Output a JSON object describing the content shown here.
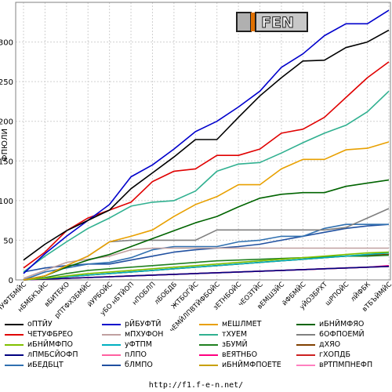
{
  "chart_data": {
    "type": "line",
    "ylabel": "ФПЮЛИ",
    "ylim": [
      0,
      350
    ],
    "yticks": [
      0,
      50,
      100,
      150,
      200,
      250,
      300
    ],
    "grid": true,
    "legend_placement": "bottom",
    "categories": [
      "бЧУФТБМЙС",
      "нБМБКЪЙС",
      "вБИТЕКО",
      "рПТФХЗБМЙС",
      "йУРБОЙС",
      "уБО нБТЙОП",
      "нПОБЛП",
      "лБОБДБ",
      "ЖТБОГЙС",
      "чЕМЙЛПВТЙФБОЙС",
      "зЕТНБОЙС",
      "чЕОЗТЙС",
      "вЕМШЗЙС",
      "йФБМЙС",
      "уЙОЗБРХТ",
      "шРПОЙС",
      "лЙФБК",
      "вТБЪЙМЙС"
    ],
    "x_tick_labels": [
      "бЧУФТБМЙС",
      "нБМБКЪЙС",
      "вБИТЕКО",
      "рПТФХЗБМЙС",
      "йУРБОЙС",
      "уБО нБТЙОП",
      "нПОБЛП",
      "лБОБДБ",
      "ЖТБОГЙС",
      "чЕМЙЛПВТЙФБОЙС",
      "зЕТНБОЙС",
      "чЕОЗТЙС",
      "вЕМШЗЙС",
      "йФБМЙС",
      "уЙОЗБРХТ",
      "шРПОЙС",
      "лЙФБК",
      "вТБЪЙМЙС"
    ],
    "series": [
      {
        "name": "оПТЙУ",
        "color": "#000000",
        "values": [
          25,
          45,
          62,
          75,
          88,
          115,
          135,
          155,
          177,
          177,
          205,
          232,
          255,
          276,
          277,
          293,
          300,
          315
        ]
      },
      {
        "name": "рЙБУФТЙ",
        "color": "#0000cc",
        "values": [
          8,
          33,
          55,
          75,
          95,
          130,
          145,
          165,
          187,
          200,
          218,
          238,
          268,
          285,
          308,
          323,
          323,
          340
        ]
      },
      {
        "name": "мЕШЛМЕТ",
        "color": "#e8a000",
        "values": [
          0,
          5,
          18,
          30,
          48,
          55,
          63,
          80,
          95,
          105,
          120,
          120,
          140,
          152,
          152,
          164,
          166,
          174
        ]
      },
      {
        "name": "иБНЙМФЯО",
        "color": "#006400",
        "values": [
          0,
          5,
          16,
          25,
          32,
          42,
          52,
          62,
          72,
          80,
          92,
          103,
          108,
          110,
          110,
          118,
          122,
          126
        ]
      },
      {
        "name": "ЧЕТУФБРЕО",
        "color": "#e00000",
        "values": [
          15,
          35,
          62,
          78,
          88,
          98,
          124,
          137,
          140,
          157,
          157,
          165,
          185,
          190,
          205,
          230,
          255,
          275
        ]
      },
      {
        "name": "мПХУФОН",
        "color": "#c0a0a0",
        "values": [
          2,
          12,
          22,
          26,
          30,
          38,
          40,
          40,
          40,
          40,
          40,
          40,
          40,
          40,
          40,
          40,
          40,
          40
        ]
      },
      {
        "name": "тХУЕМ",
        "color": "#30b090",
        "values": [
          10,
          30,
          48,
          65,
          78,
          93,
          98,
          100,
          112,
          137,
          146,
          148,
          160,
          173,
          185,
          195,
          212,
          238
        ]
      },
      {
        "name": "6ОФПОЕМЙ",
        "color": "#808080",
        "values": [
          0,
          5,
          18,
          30,
          48,
          50,
          50,
          50,
          50,
          63,
          63,
          63,
          63,
          63,
          63,
          66,
          78,
          90
        ]
      },
      {
        "name": "иБНЙМФПО",
        "color": "#80c000",
        "values": [
          0,
          2,
          5,
          8,
          10,
          12,
          14,
          16,
          18,
          20,
          22,
          24,
          26,
          28,
          30,
          32,
          34,
          35
        ]
      },
      {
        "name": "уФТПМ",
        "color": "#00b0c0",
        "values": [
          0,
          2,
          4,
          6,
          8,
          10,
          12,
          14,
          16,
          18,
          20,
          22,
          24,
          26,
          28,
          30,
          32,
          34
        ]
      },
      {
        "name": "зБУМЙ",
        "color": "#208020",
        "values": [
          0,
          3,
          8,
          12,
          14,
          16,
          18,
          20,
          22,
          24,
          25,
          26,
          27,
          28,
          29,
          30,
          30,
          31
        ]
      },
      {
        "name": "дХЯО",
        "color": "#804000",
        "values": [
          0,
          2,
          4,
          6,
          8,
          10,
          12,
          14,
          16,
          18,
          20,
          22,
          24,
          26,
          28,
          30,
          31,
          32
        ]
      },
      {
        "name": "лПМБСЙОФП",
        "color": "#000080",
        "values": [
          0,
          1,
          2,
          3,
          4,
          5,
          6,
          7,
          8,
          9,
          10,
          11,
          12,
          13,
          14,
          15,
          16,
          17
        ]
      },
      {
        "name": "пЛПО",
        "color": "#ff60a0",
        "values": [
          0,
          1,
          2,
          3,
          4,
          5,
          6,
          7,
          8,
          9,
          10,
          11,
          12,
          13,
          14,
          15,
          16,
          17
        ]
      },
      {
        "name": "вЕЯТНБО",
        "color": "#ff0080",
        "values": [
          0,
          1,
          2,
          3,
          4,
          5,
          6,
          7,
          8,
          9,
          10,
          11,
          12,
          13,
          14,
          15,
          16,
          18
        ]
      },
      {
        "name": "гХОПДБ",
        "color": "#cc2020",
        "values": [
          0,
          1,
          2,
          3,
          4,
          5,
          6,
          7,
          8,
          9,
          10,
          11,
          12,
          13,
          14,
          15,
          16,
          17
        ]
      },
      {
        "name": "иБЕДБЦТ",
        "color": "#3070b0",
        "values": [
          0,
          10,
          15,
          20,
          22,
          28,
          38,
          42,
          42,
          42,
          48,
          50,
          55,
          55,
          65,
          70,
          70,
          70
        ]
      },
      {
        "name": "бЛМПО",
        "color": "#2050a0",
        "values": [
          10,
          15,
          18,
          20,
          20,
          25,
          30,
          35,
          38,
          40,
          42,
          45,
          50,
          55,
          60,
          65,
          68,
          70
        ]
      },
      {
        "name": "иБНЙМФПОЕТЕ",
        "color": "#c8a000",
        "values": [
          0,
          2,
          4,
          6,
          8,
          10,
          12,
          14,
          16,
          18,
          20,
          22,
          24,
          26,
          28,
          30,
          32,
          34
        ]
      },
      {
        "name": "вРТПМПНЕФП",
        "color": "#ff80c0",
        "values": [
          0,
          1,
          2,
          3,
          4,
          5,
          6,
          7,
          8,
          9,
          10,
          11,
          12,
          13,
          14,
          15,
          16,
          17
        ]
      }
    ]
  },
  "legend": [
    {
      "label": "оПТЙУ",
      "color": "#000000"
    },
    {
      "label": "рЙБУФТЙ",
      "color": "#0000cc"
    },
    {
      "label": "мЕШЛМЕТ",
      "color": "#e8a000"
    },
    {
      "label": "иБНЙМФЯО",
      "color": "#006400"
    },
    {
      "label": "ЧЕТУФБРЕО",
      "color": "#e00000"
    },
    {
      "label": "мПХУФОН",
      "color": "#c0a0a0"
    },
    {
      "label": "тХУЕМ",
      "color": "#30b090"
    },
    {
      "label": "6ОФПОЕМЙ",
      "color": "#808080"
    },
    {
      "label": "иБНЙМФПО",
      "color": "#80c000"
    },
    {
      "label": "уФТПМ",
      "color": "#00b0c0"
    },
    {
      "label": "зБУМЙ",
      "color": "#208020"
    },
    {
      "label": "дХЯО",
      "color": "#804000"
    },
    {
      "label": "лПМБСЙОФП",
      "color": "#000080"
    },
    {
      "label": "пЛПО",
      "color": "#ff60a0"
    },
    {
      "label": "вЕЯТНБО",
      "color": "#ff0080"
    },
    {
      "label": "гХОПДБ",
      "color": "#cc2020"
    },
    {
      "label": "иБЕДБЦТ",
      "color": "#3070b0"
    },
    {
      "label": "бЛМПО",
      "color": "#2050a0"
    },
    {
      "label": "иБНЙМФПОЕТЕ",
      "color": "#c8a000"
    },
    {
      "label": "вРТПМПНЕФП",
      "color": "#ff80c0"
    }
  ],
  "footer": {
    "url": "http://f1.f-e-n.net/"
  },
  "logo": {
    "text": "FEN"
  }
}
